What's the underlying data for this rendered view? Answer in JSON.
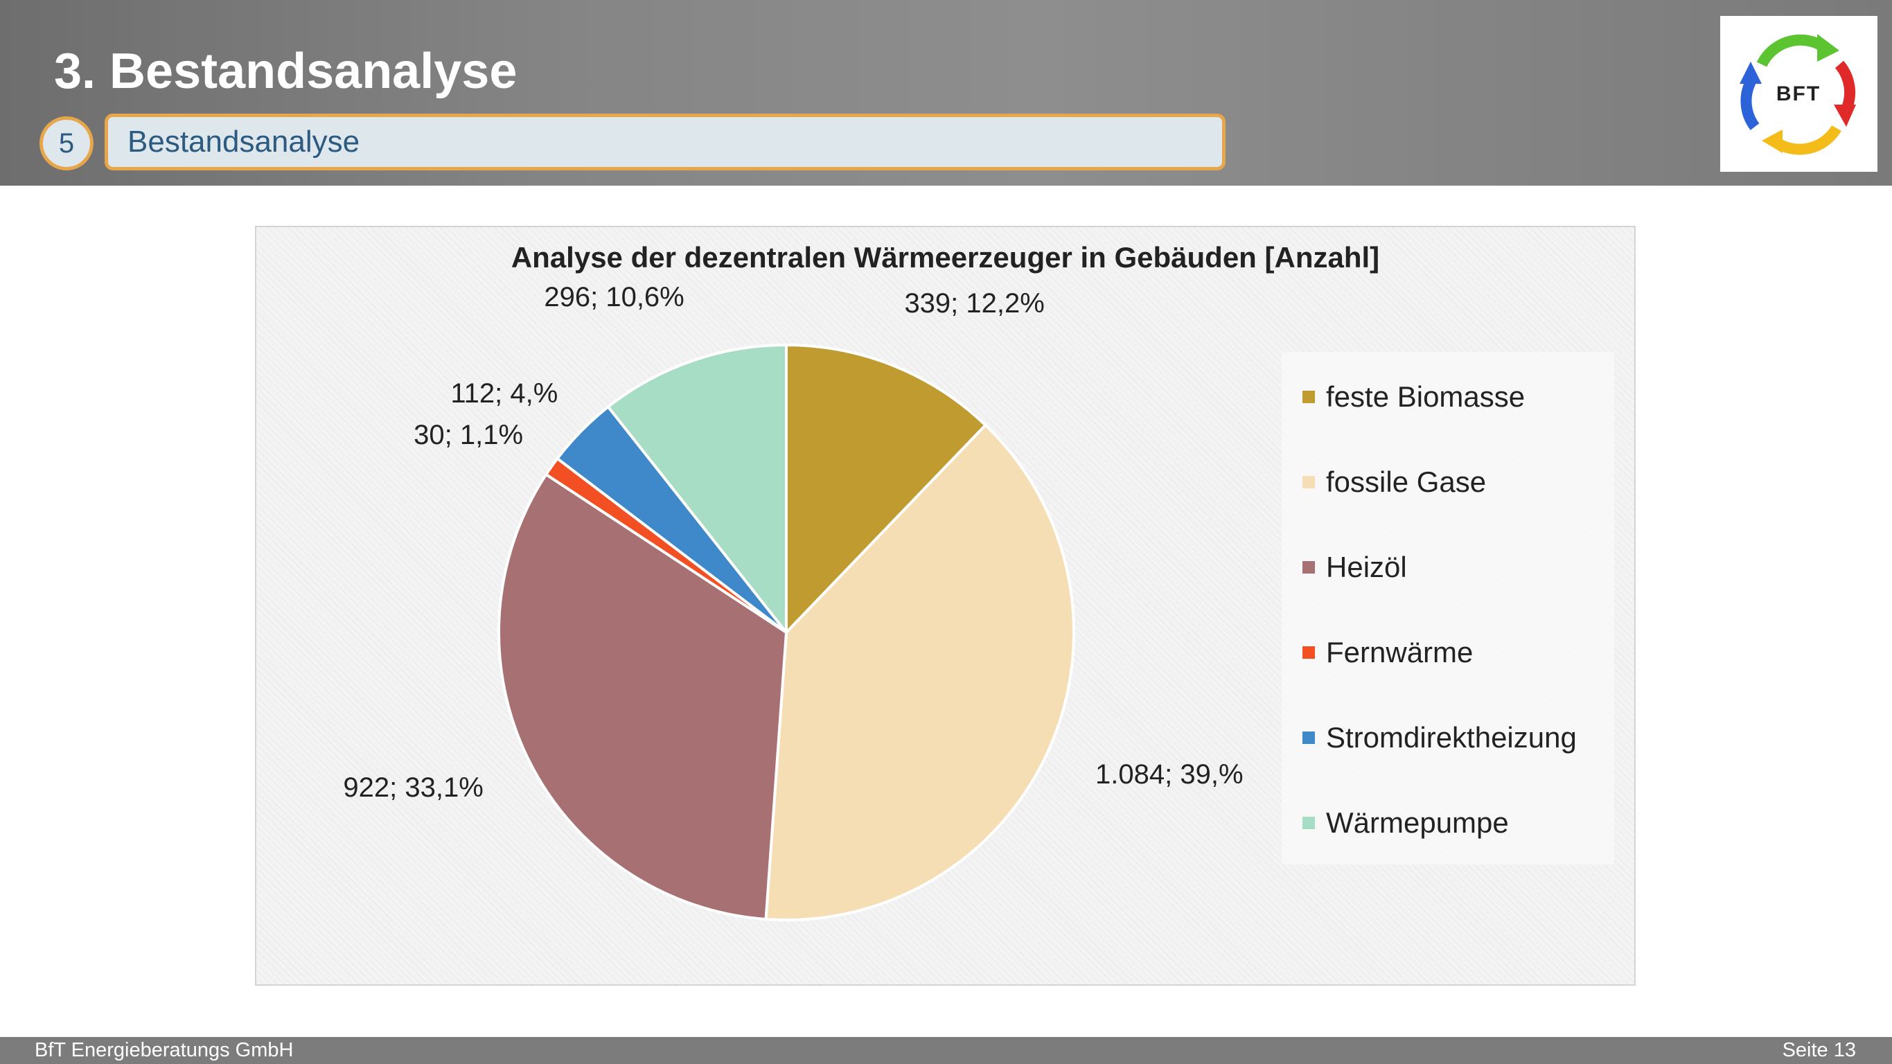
{
  "header": {
    "title": "3. Bestandsanalyse",
    "section_number": "5",
    "section_label": "Bestandsanalyse",
    "logo_text": "BFT"
  },
  "chart_data": {
    "type": "pie",
    "title": "Analyse der dezentralen Wärmeerzeuger in Gebäuden [Anzahl]",
    "categories": [
      "feste Biomasse",
      "fossile Gase",
      "Heizöl",
      "Fernwärme",
      "Stromdirektheizung",
      "Wärmepumpe"
    ],
    "values": [
      339,
      1084,
      922,
      30,
      112,
      296
    ],
    "data_labels": [
      "339; 12,2%",
      "1.084; 39,%",
      "922; 33,1%",
      "30; 1,1%",
      "112; 4,%",
      "296; 10,6%"
    ],
    "colors": [
      "#bf9b30",
      "#f5deb4",
      "#a77072",
      "#f25022",
      "#3f88c9",
      "#a6ddc4"
    ],
    "legend_position": "right"
  },
  "footer": {
    "company": "BfT Energieberatungs GmbH",
    "page": "Seite 13"
  }
}
